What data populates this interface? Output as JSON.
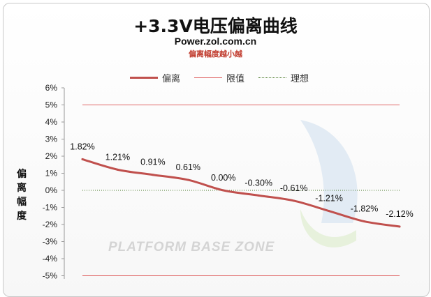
{
  "chart_data": {
    "type": "line",
    "title": "+3.3V电压偏离曲线",
    "subtitle": "Power.zol.com.cn",
    "note": "偏离幅度越小越",
    "ylabel": "偏离幅度",
    "ylabel_chars": [
      "偏",
      "离",
      "幅",
      "度"
    ],
    "ylim": [
      -5,
      6
    ],
    "yticks": [
      "6%",
      "5%",
      "4%",
      "3%",
      "2%",
      "1%",
      "0%",
      "-1%",
      "-2%",
      "-3%",
      "-4%",
      "-5%"
    ],
    "ytick_values": [
      6,
      5,
      4,
      3,
      2,
      1,
      0,
      -1,
      -2,
      -3,
      -4,
      -5
    ],
    "grid": false,
    "legend_position": "top-center",
    "series": [
      {
        "name": "偏离",
        "color": "#c0504d",
        "values": [
          1.82,
          1.21,
          0.91,
          0.61,
          0.0,
          -0.3,
          -0.61,
          -1.21,
          -1.82,
          -2.12
        ],
        "labels": [
          "1.82%",
          "1.21%",
          "0.91%",
          "0.61%",
          "0.00%",
          "-0.30%",
          "-0.61%",
          "-1.21%",
          "-1.82%",
          "-2.12%"
        ]
      },
      {
        "name": "限值",
        "color": "#e06666",
        "values": [
          5,
          -5
        ]
      },
      {
        "name": "理想",
        "color": "#4a7a2a",
        "values": [
          0
        ]
      }
    ],
    "watermark": "PLATFORM BASE ZONE"
  }
}
